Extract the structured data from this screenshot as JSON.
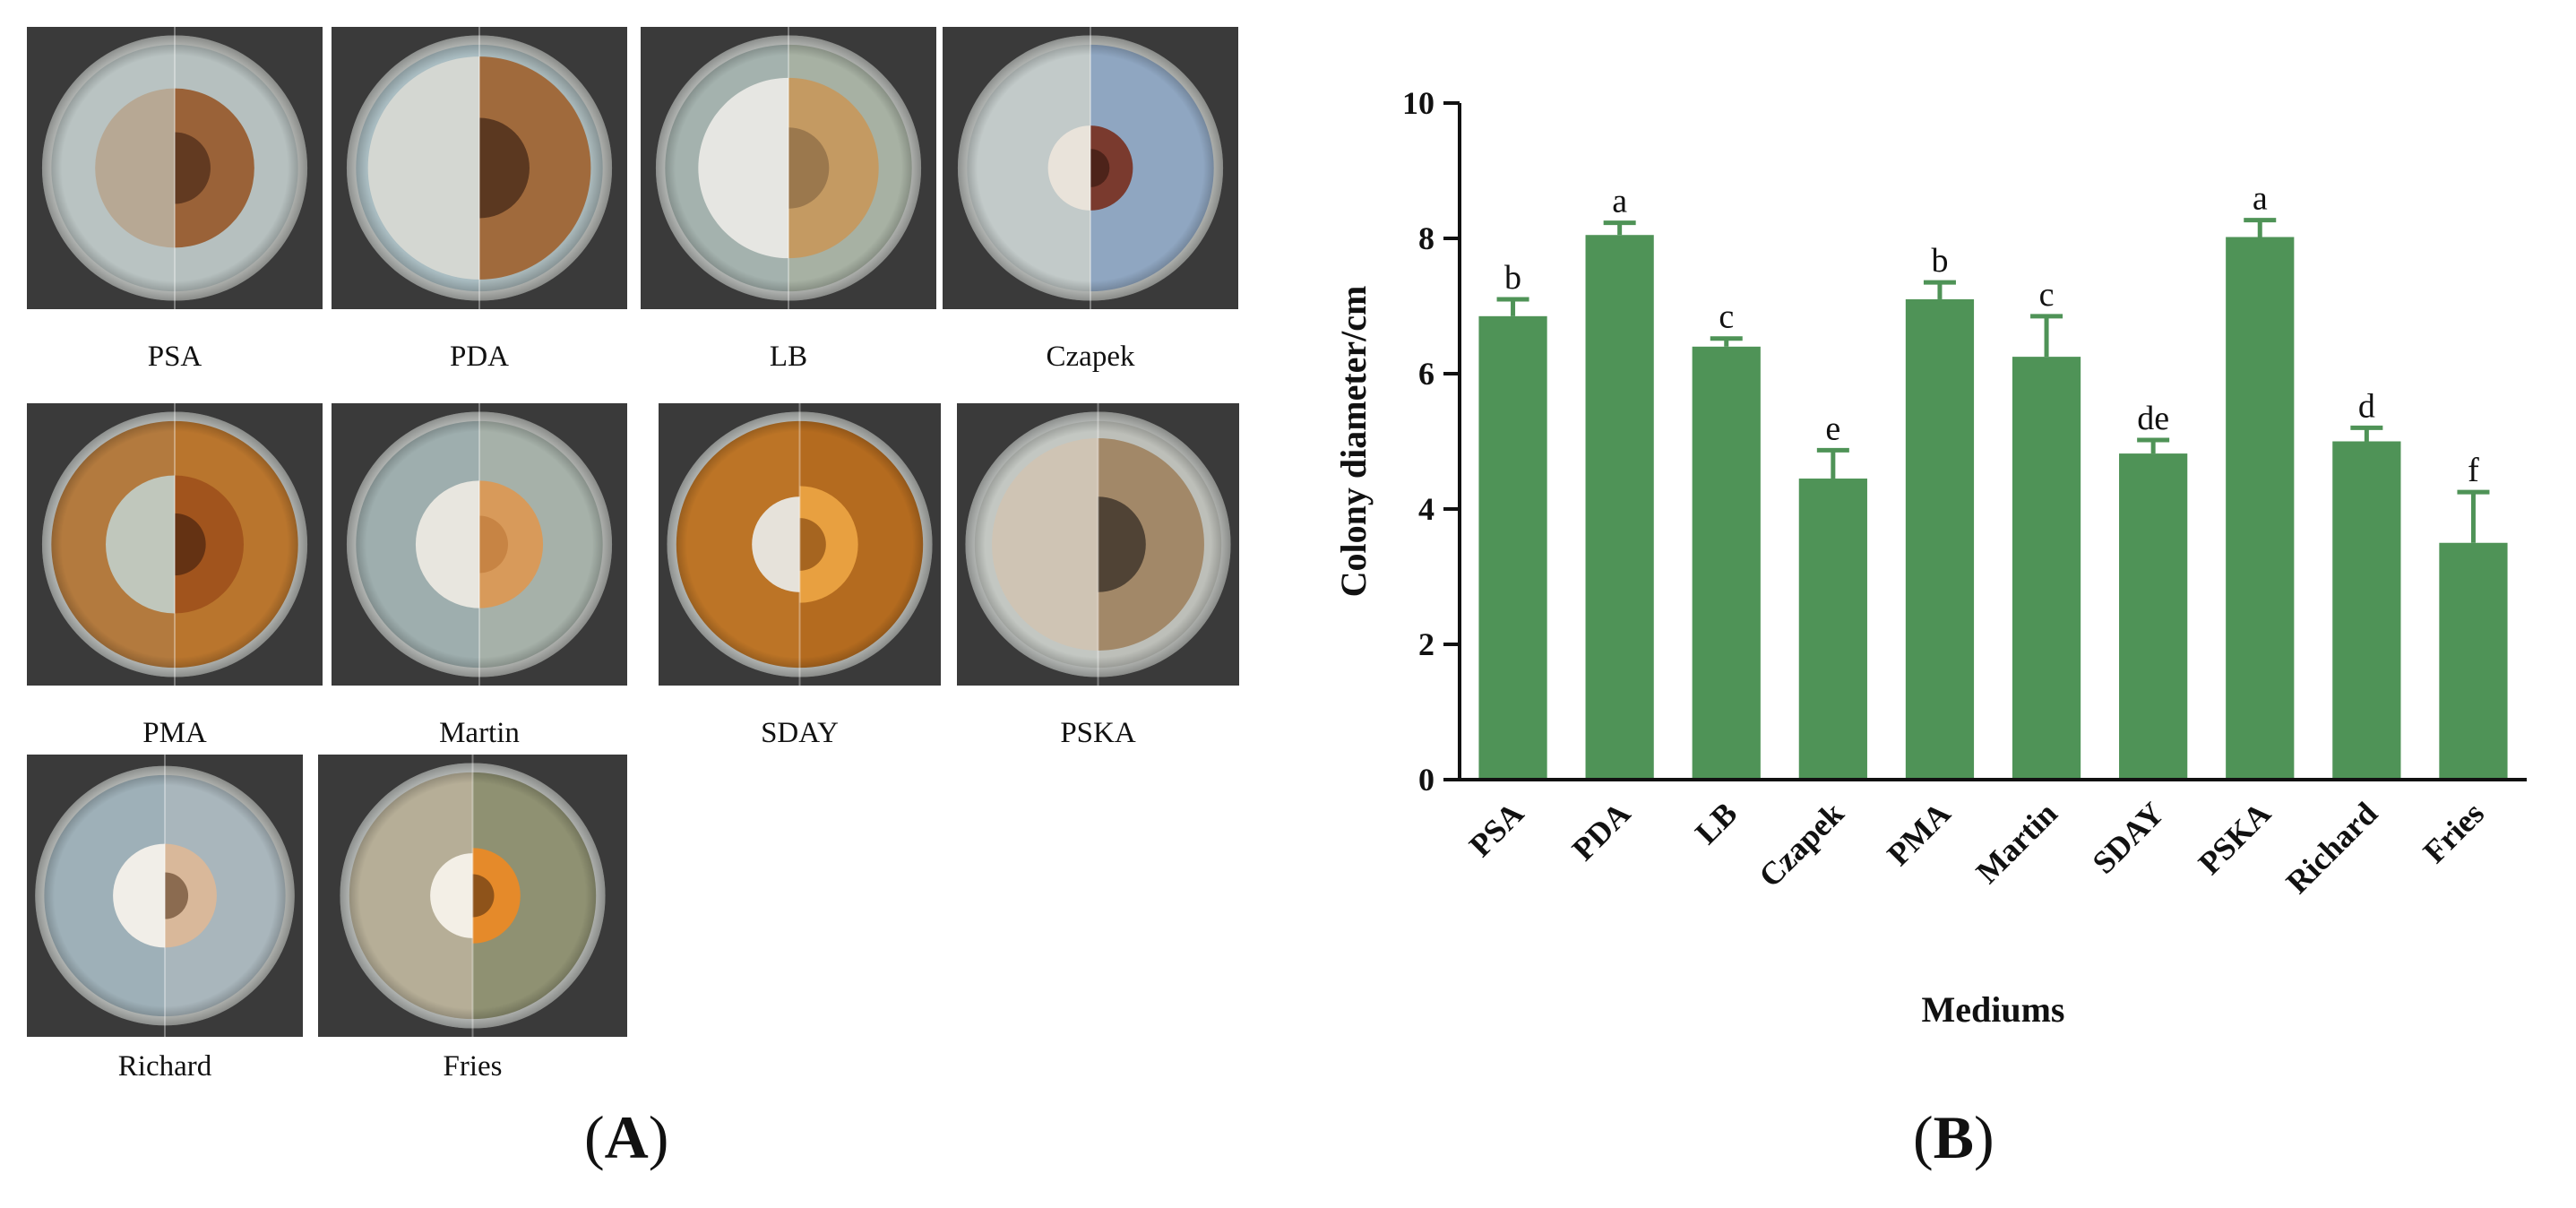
{
  "panels": {
    "a_label": "A",
    "b_label": "B"
  },
  "photos": [
    {
      "label": "PSA",
      "left": {
        "bg": "#b9c3c2",
        "colony": "#b7a894",
        "r": 0.3
      },
      "right": {
        "bg": "#b6c0bf",
        "colony": "#9a6238",
        "core": "#4a2a18",
        "r": 0.3
      }
    },
    {
      "label": "PDA",
      "left": {
        "bg": "#a9bcc1",
        "colony": "#d4d7d2",
        "r": 0.42
      },
      "right": {
        "bg": "#a7b6b8",
        "colony": "#a06a3c",
        "core": "#3d2414",
        "r": 0.42
      }
    },
    {
      "label": "LB",
      "left": {
        "bg": "#a4b2ae",
        "colony": "#e6e6e2",
        "r": 0.34
      },
      "right": {
        "bg": "#a7b1a3",
        "colony": "#c49a62",
        "core": "#8a6a44",
        "r": 0.34
      }
    },
    {
      "label": "Czapek",
      "left": {
        "bg": "#c2cac9",
        "colony": "#e9e3da",
        "r": 0.16
      },
      "right": {
        "bg": "#8fa6c1",
        "colony": "#7a3a2e",
        "core": "#3a1a12",
        "r": 0.16
      }
    },
    {
      "label": "PMA",
      "left": {
        "bg": "#b37a3e",
        "colony": "#c0c7bc",
        "r": 0.26
      },
      "right": {
        "bg": "#b9752d",
        "colony": "#a1541d",
        "core": "#4a2410",
        "r": 0.26
      }
    },
    {
      "label": "Martin",
      "left": {
        "bg": "#9eaeae",
        "colony": "#e8e6df",
        "r": 0.24
      },
      "right": {
        "bg": "#a6b1a9",
        "colony": "#d89a5a",
        "core": "#c07a3a",
        "r": 0.24
      }
    },
    {
      "label": "SDAY",
      "left": {
        "bg": "#bc7426",
        "colony": "#e6e2da",
        "r": 0.18
      },
      "right": {
        "bg": "#b46b1f",
        "colony": "#e8a040",
        "core": "#8a4c12",
        "r": 0.22
      }
    },
    {
      "label": "PSKA",
      "left": {
        "bg": "#c3c7c2",
        "colony": "#cfc4b4",
        "r": 0.4
      },
      "right": {
        "bg": "#bdbfb9",
        "colony": "#a28868",
        "core": "#2d2620",
        "r": 0.4
      }
    },
    {
      "label": "Richard",
      "left": {
        "bg": "#9eb0b8",
        "colony": "#f1eee8",
        "r": 0.2
      },
      "right": {
        "bg": "#a9b6bc",
        "colony": "#d9b89a",
        "core": "#6a4a30",
        "r": 0.2
      }
    },
    {
      "label": "Fries",
      "left": {
        "bg": "#b6ae97",
        "colony": "#f3efe6",
        "r": 0.16
      },
      "right": {
        "bg": "#8f9172",
        "colony": "#e58a2a",
        "core": "#6a3c14",
        "r": 0.18
      }
    }
  ],
  "chart_data": {
    "type": "bar",
    "title": "",
    "xlabel": "Mediums",
    "ylabel": "Colony diameter/cm",
    "ylim": [
      0,
      10
    ],
    "yticks": [
      "0",
      "2",
      "4",
      "6",
      "8",
      "10"
    ],
    "bar_color": "#4f9357",
    "categories": [
      "PSA",
      "PDA",
      "LB",
      "Czapek",
      "PMA",
      "Martin",
      "SDAY",
      "PSKA",
      "Richard",
      "Fries"
    ],
    "values": [
      6.85,
      8.05,
      6.4,
      4.45,
      7.1,
      6.25,
      4.82,
      8.02,
      5.0,
      3.5
    ],
    "errors": [
      0.25,
      0.18,
      0.12,
      0.42,
      0.25,
      0.6,
      0.2,
      0.25,
      0.2,
      0.75
    ],
    "significance": [
      "b",
      "a",
      "c",
      "e",
      "b",
      "c",
      "de",
      "a",
      "d",
      "f"
    ]
  }
}
